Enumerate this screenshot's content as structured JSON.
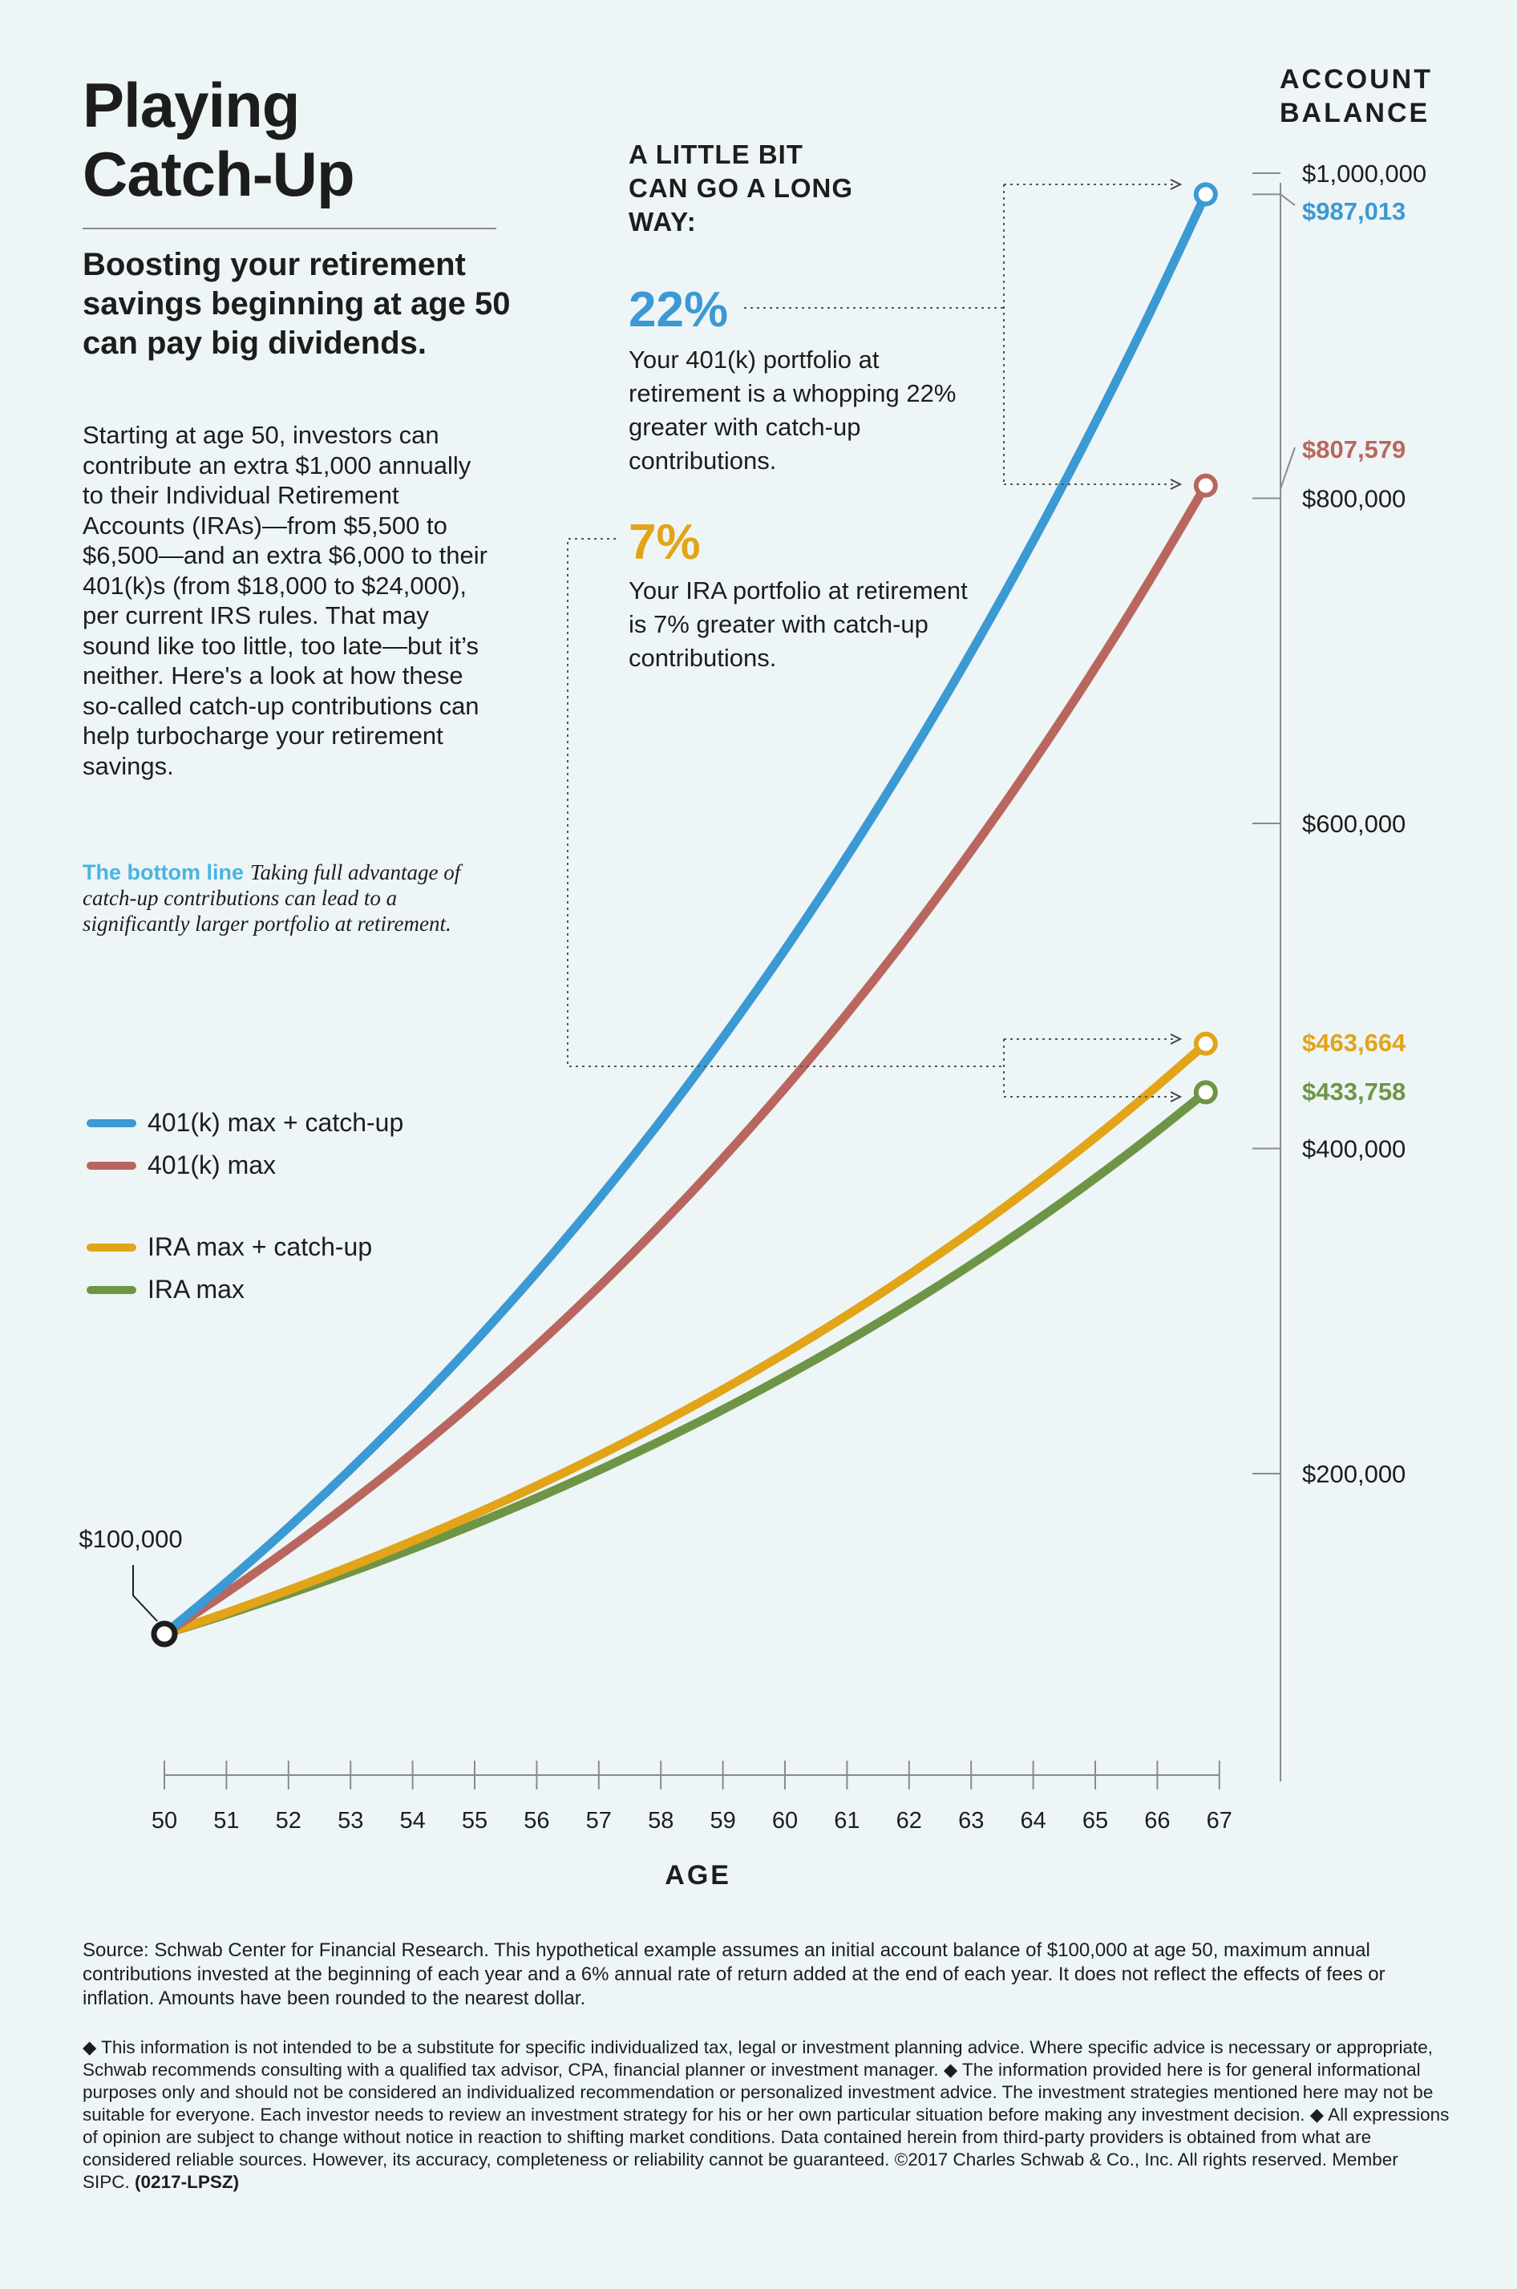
{
  "title": "Playing Catch-Up",
  "subtitle": "Boosting your retirement savings beginning at age 50 can pay big dividends.",
  "intro": "Starting at age 50, investors can contribute an extra $1,000 annually to their Individual Retirement Accounts (IRAs)—from $5,500 to $6,500—and an extra $6,000 to their 401(k)s (from $18,000 to $24,000), per current IRS rules. That may sound like too little, too late—but it’s neither. Here's a look at how these so-called catch-up contributions can help turbocharge your retirement savings.",
  "bottom_line": {
    "label": "The bottom line",
    "text": "Taking full advantage of catch-up contributions can lead to a significantly larger portfolio at retirement."
  },
  "callouts": {
    "heading": "A LITTLE BIT CAN GO A LONG WAY:",
    "k401": {
      "pct": "22%",
      "text": "Your 401(k) portfolio at retirement is a whopping 22% greater with catch-up contributions."
    },
    "ira": {
      "pct": "7%",
      "text": "Your IRA portfolio at retirement is 7% greater with catch-up contributions."
    }
  },
  "colors": {
    "blue": "#3b99d4",
    "red": "#b9675e",
    "gold": "#e2a418",
    "green": "#6e9545",
    "ink": "#1d1d1d",
    "axis": "#8a8a8a"
  },
  "chart_data": {
    "type": "line",
    "title": "Playing Catch-Up",
    "xlabel": "AGE",
    "ylabel": "ACCOUNT BALANCE",
    "x": [
      50,
      51,
      52,
      53,
      54,
      55,
      56,
      57,
      58,
      59,
      60,
      61,
      62,
      63,
      64,
      65,
      66,
      67
    ],
    "xlim": [
      50,
      67
    ],
    "ylim": [
      0,
      1000000
    ],
    "yticks": [
      {
        "value": 200000,
        "label": "$200,000"
      },
      {
        "value": 400000,
        "label": "$400,000"
      },
      {
        "value": 600000,
        "label": "$600,000"
      },
      {
        "value": 800000,
        "label": "$800,000"
      },
      {
        "value": 1000000,
        "label": "$1,000,000"
      }
    ],
    "start_label": "$100,000",
    "series": [
      {
        "name": "401(k) max + catch-up",
        "color": "#3b99d4",
        "values": [
          100000,
          131440,
          164766,
          200092,
          237537,
          277230,
          319303,
          363901,
          411175,
          461285,
          514402,
          570706,
          630388,
          693651,
          760710,
          831792,
          907140,
          987013
        ],
        "end_label": "$987,013"
      },
      {
        "name": "401(k) max",
        "color": "#b9675e",
        "values": [
          100000,
          125080,
          151665,
          179845,
          209716,
          241379,
          274942,
          310518,
          348229,
          388203,
          430575,
          475490,
          523100,
          573566,
          627060,
          683764,
          743870,
          807579
        ],
        "end_label": "$807,579"
      },
      {
        "name": "IRA max + catch-up",
        "color": "#e2a418",
        "values": [
          100000,
          112890,
          126553,
          141036,
          156388,
          172661,
          189910,
          208195,
          227576,
          248121,
          269898,
          292982,
          317451,
          343388,
          370881,
          400024,
          430915,
          463664
        ],
        "end_label": "$463,664"
      },
      {
        "name": "IRA max",
        "color": "#6e9545",
        "values": [
          100000,
          111830,
          124370,
          137662,
          151752,
          166687,
          182518,
          199299,
          217087,
          235942,
          255929,
          277115,
          299571,
          323375,
          348608,
          375354,
          403705,
          433758
        ],
        "end_label": "$433,758"
      }
    ]
  },
  "source": "Source: Schwab Center for Financial Research. This hypothetical example assumes an initial account balance of $100,000 at age 50, maximum annual contributions invested at the beginning of each year and a 6% annual rate of return added at the end of each year. It does not reflect the effects of fees or inflation. Amounts have been rounded to the nearest dollar.",
  "disclaimer": {
    "text": "◆ This information is not intended to be a substitute for specific individualized tax, legal or investment planning advice. Where specific advice is necessary or appropriate, Schwab recommends consulting with a qualified tax advisor, CPA, financial planner or investment manager. ◆ The information provided here is for general informational purposes only and should not be considered an individualized recommendation or personalized investment advice. The investment strategies mentioned here may not be suitable for everyone. Each investor needs to review an investment strategy for his or her own particular situation before making any investment decision. ◆ All expressions of opinion are subject to change without notice in reaction to shifting market conditions. Data contained herein from third-party providers is obtained from what are considered reliable sources. However, its accuracy, completeness or reliability cannot be guaranteed. ©2017 Charles Schwab & Co., Inc. All rights reserved. Member SIPC.",
    "code": "(0217-LPSZ)"
  }
}
